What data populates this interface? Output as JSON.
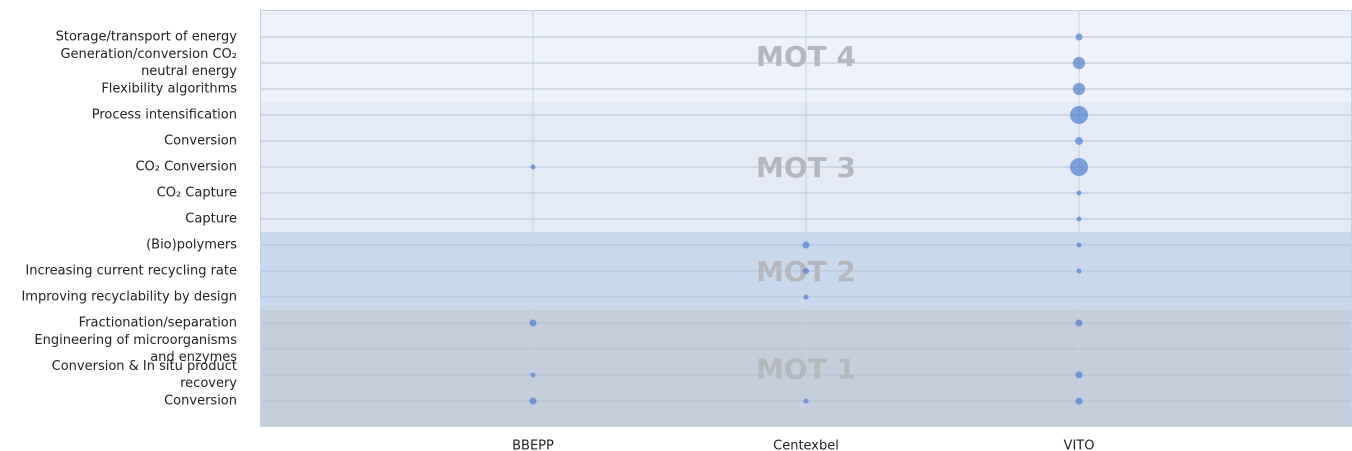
{
  "chart_data": {
    "type": "bubble",
    "columns": [
      "BBEPP",
      "Centexbel",
      "VITO"
    ],
    "groups": [
      {
        "label": "MOT 4",
        "color": "#edf2fa",
        "rows": [
          [
            "Storage/transport of energy"
          ],
          [
            "Generation/conversion CO₂",
            "neutral energy"
          ],
          [
            "Flexibility algorithms"
          ]
        ]
      },
      {
        "label": "MOT 3",
        "color": "#e5ebf6",
        "rows": [
          [
            "Process intensification"
          ],
          [
            "Conversion"
          ],
          [
            "CO₂ Conversion"
          ],
          [
            "CO₂ Capture"
          ],
          [
            "Capture"
          ]
        ]
      },
      {
        "label": "MOT 2",
        "color": "#c9d9ed",
        "rows": [
          [
            "(Bio)polymers"
          ],
          [
            "Increasing current recycling rate"
          ],
          [
            "Improving recyclability by design"
          ]
        ]
      },
      {
        "label": "MOT 1",
        "color": "#c4cedb",
        "rows": [
          [
            "Fractionation/separation"
          ],
          [
            "Engineering of microorganisms",
            "and enzymes"
          ],
          [
            "Conversion & In situ product",
            "recovery"
          ],
          [
            "Conversion"
          ]
        ]
      }
    ],
    "series": [
      {
        "name": "BBEPP",
        "color": "#4f7fcf",
        "values": [
          null,
          null,
          null,
          null,
          null,
          1,
          null,
          null,
          null,
          null,
          null,
          2,
          null,
          1,
          2
        ]
      },
      {
        "name": "Centexbel",
        "color": "#4f7fcf",
        "values": [
          null,
          null,
          null,
          null,
          null,
          null,
          null,
          null,
          2,
          1.5,
          1,
          null,
          null,
          null,
          1
        ]
      },
      {
        "name": "VITO",
        "color": "#4f7fcf",
        "values": [
          2,
          6,
          6,
          13,
          2.5,
          13,
          1,
          1,
          1,
          1,
          null,
          2,
          null,
          2,
          2
        ]
      }
    ],
    "grid": true
  }
}
